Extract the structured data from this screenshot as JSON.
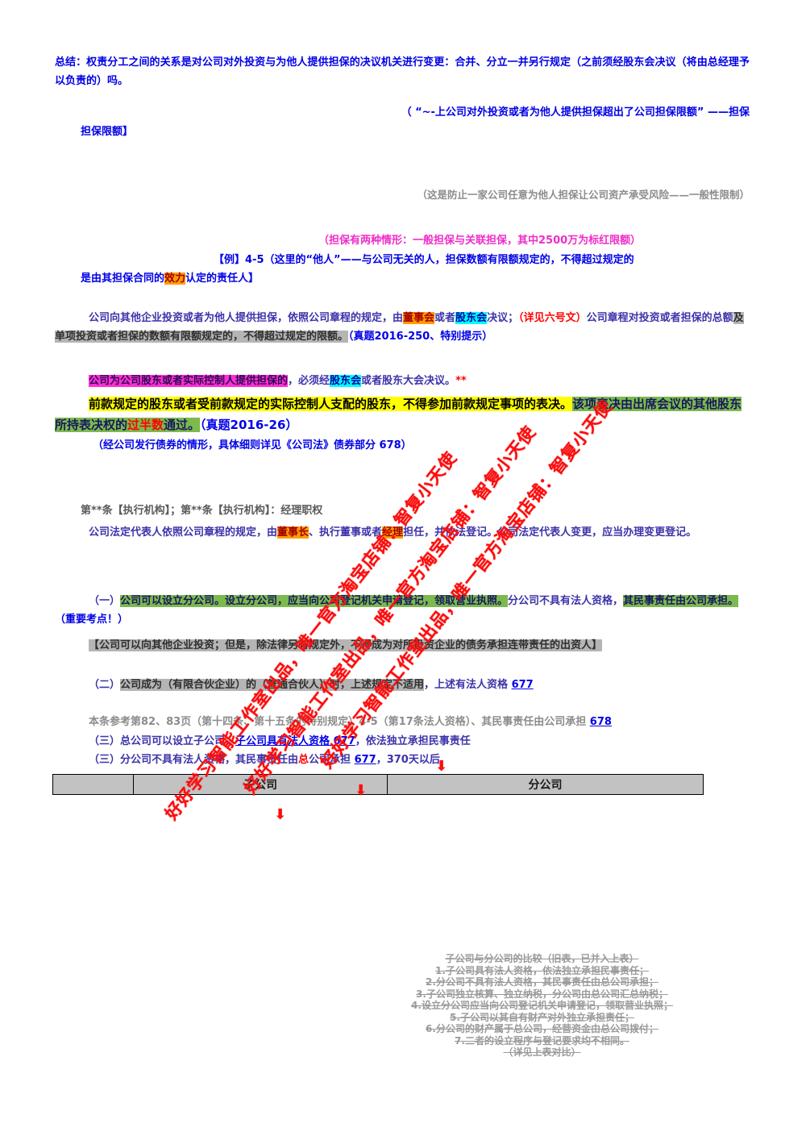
{
  "colors": {
    "accent_blue": "#0000e8",
    "body_purple": "#3c33aa",
    "highlight_yellow": "#ffff00",
    "highlight_cyan": "#00ffff",
    "highlight_orange": "#ff9d00",
    "highlight_green": "#7cb94e",
    "highlight_magenta": "#ff2fd4",
    "highlight_gray": "#b5b5b5",
    "watermark_red": "#fb0f0f",
    "table_header_bg": "#c2c2c2"
  },
  "document": {
    "paras": {
      "p1": {
        "segments": [
          {
            "t": "总结：权责分工之间的关系是对公司对外投资与为他人提供担保的决议机关进行变更：合并、分立一并另行规定（之前须经股东会决议（将由总经理予以负责的）吗。",
            "s": "blue"
          }
        ]
      },
      "p2": {
        "segments": [
          {
            "t": "（ “~-上公司对外投资或者为他人提供担保超出了公司担保限额” ——担保",
            "s": "blue"
          }
        ]
      },
      "p3": {
        "segments": [
          {
            "t": "担保限额】",
            "s": "blue"
          }
        ]
      },
      "p4": {
        "segments": [
          {
            "t": "（这是防止一家公司任意为他人担保让公司资产承受风险——一般性限制）",
            "s": "gray"
          }
        ]
      },
      "p5": {
        "segments": [
          {
            "t": "（担保有两种情形：一般担保与关联担保，其中2500万为标红限额）",
            "s": "magenta"
          }
        ]
      },
      "p6a": {
        "segments": [
          {
            "t": "【例】4-5（这里的“他人”——与公司无关的人，担保数额有限额规定的，不得超过规定的",
            "s": "blue"
          }
        ]
      },
      "p6b": {
        "segments": [
          {
            "t": "是由其担保合同的",
            "s": "blue"
          },
          {
            "t": "效力",
            "s": "hl-orange"
          },
          {
            "t": "认定的责任人】",
            "s": "blue"
          }
        ]
      },
      "p7": {
        "segments": [
          {
            "t": "公司向其他企业投资或者为他人提供担保，依照公司章程的规定，由",
            "s": "purple"
          },
          {
            "t": "董事会",
            "s": "hl-orange"
          },
          {
            "t": "或者",
            "s": "purple"
          },
          {
            "t": "股东会",
            "s": "hl-cyan"
          },
          {
            "t": "决议；",
            "s": "purple"
          },
          {
            "t": "（详见六号文）",
            "s": "red"
          },
          {
            "t": "公司章程对投资或者担保的总额",
            "s": "purple"
          },
          {
            "t": "及单项投资或者担保的数额有限额规定的，不得超过规定的限额。",
            "s": "hl-gray"
          },
          {
            "t": "（真题2016-250、特别提示）",
            "s": "blue"
          }
        ]
      },
      "p8": {
        "segments": [
          {
            "t": "公司为公司股东或者实际控制人提供担保的",
            "s": "hl-magenta"
          },
          {
            "t": "，必须经",
            "s": "purple"
          },
          {
            "t": "股东会",
            "s": "hl-cyan"
          },
          {
            "t": "或者股东大会决议。",
            "s": "purple"
          },
          {
            "t": "**",
            "s": "red"
          }
        ]
      },
      "p9": {
        "segments": [
          {
            "t": "前款规定的股东或者受前款规定的实际控制人支配的股东，不得参加前款规定事项的表决。",
            "s": "hl-yellow"
          },
          {
            "t": "该项表决由出席会议的其他股东所持表决权的",
            "s": "hl-green"
          },
          {
            "t": "过半数",
            "s": "hl-green red"
          },
          {
            "t": "通过。",
            "s": "hl-green"
          },
          {
            "t": "（真题2016-26）",
            "s": "blue"
          }
        ]
      },
      "p10": {
        "segments": [
          {
            "t": "（经公司发行债券的情形，具体细则详见《公司法》债券部分 678）",
            "s": "blue"
          }
        ]
      },
      "p11": {
        "segments": [
          {
            "t": "第**条【执行机构】；第**条【执行机构】：经理职权",
            "s": "darkgray"
          }
        ]
      },
      "p12": {
        "segments": [
          {
            "t": "公司法定代表人依照公司章程的规定，由",
            "s": "purple"
          },
          {
            "t": "董事长",
            "s": "hl-orange"
          },
          {
            "t": "、执行董事或者",
            "s": "purple"
          },
          {
            "t": "经理",
            "s": "hl-orange"
          },
          {
            "t": "担任，并依法登记。公司法定代表人变更，应当办理变更登记。",
            "s": "purple"
          }
        ]
      },
      "p13": {
        "segments": [
          {
            "t": "（一）",
            "s": "purple"
          },
          {
            "t": "公司可以设立分公司。设立分公司，应当向公司登记机关申请登记，领取营业执照。",
            "s": "hl-green"
          },
          {
            "t": "分公司不具有法人资格，",
            "s": "purple"
          },
          {
            "t": "其民事责任由公司承担。",
            "s": "hl-green"
          },
          {
            "t": "（重要考点！）",
            "s": "blue"
          }
        ]
      },
      "p14": {
        "segments": [
          {
            "t": "【公司可以向其他企业投资；但是，除法律另有规定外，不得成为对所投资企业的债务承担连带责任的出资人】",
            "s": "hl-gray"
          }
        ]
      },
      "p15": {
        "segments": [
          {
            "t": "（二）",
            "s": "purple"
          },
          {
            "t": "公司成为（有限合伙企业）的（普通合伙人）时，上述规定不适用",
            "s": "hl-gray"
          },
          {
            "t": "，上述有法人资格 ",
            "s": "purple"
          },
          {
            "t": "677",
            "s": "link"
          }
        ]
      },
      "p16": {
        "segments": [
          {
            "t": "本条参考第82、83页（第十四条、第十五条的特别规定）4-5（第17条法人资格）、其民事责任由公司承担 ",
            "s": "gray"
          },
          {
            "t": "678",
            "s": "link"
          }
        ]
      },
      "p17": {
        "segments": [
          {
            "t": "（三）总公司可以设立子公司，",
            "s": "purple"
          },
          {
            "t": "子公司具有法人资格 677",
            "s": "link"
          },
          {
            "t": "，依法独立承担民事责任",
            "s": "purple"
          }
        ]
      },
      "p18": {
        "segments": [
          {
            "t": "（三）分公司不具有法人资格，其民事责任由",
            "s": "purple"
          },
          {
            "t": "总",
            "s": "red"
          },
          {
            "t": "公司承担 ",
            "s": "purple"
          },
          {
            "t": "677",
            "s": "link"
          },
          {
            "t": "，370天以后",
            "s": "purple"
          }
        ]
      }
    },
    "table": {
      "headers": [
        "",
        "子公司",
        "分公司"
      ]
    },
    "watermark": {
      "text": "好好学习智能工作室出品，唯一官方淘宝店铺：智复小天使",
      "arrow": "⬇"
    },
    "footer": {
      "lines": [
        "子公司与分公司的比较（旧表，已并入上表）",
        "1.子公司具有法人资格，依法独立承担民事责任；",
        "2.分公司不具有法人资格，其民事责任由总公司承担；",
        "3.子公司独立核算、独立纳税，分公司由总公司汇总纳税；",
        "4.设立分公司应当向公司登记机关申请登记，领取营业执照；",
        "5.子公司以其自有财产对外独立承担责任；",
        "6.分公司的财产属于总公司，经营资金由总公司拨付；",
        "7.二者的设立程序与登记要求均不相同。",
        "（详见上表对比）"
      ]
    }
  }
}
